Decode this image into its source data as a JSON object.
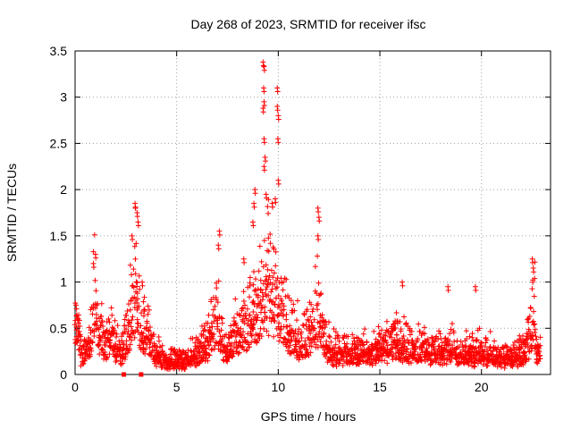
{
  "chart_data": {
    "type": "scatter",
    "title": "Day 268 of 2023, SRMTID for receiver ifsc",
    "xlabel": "GPS time / hours",
    "ylabel": "SRMTID / TECUs",
    "xlim": [
      0,
      23.4
    ],
    "ylim": [
      0,
      3.5
    ],
    "xticks": [
      0,
      5,
      10,
      15,
      20
    ],
    "xtick_labels": [
      "0",
      "5",
      "10",
      "15",
      "20"
    ],
    "yticks": [
      0,
      0.5,
      1,
      1.5,
      2,
      2.5,
      3,
      3.5
    ],
    "ytick_labels": [
      "0",
      "0.5",
      "1",
      "1.5",
      "2",
      "2.5",
      "3",
      "3.5"
    ],
    "grid": true,
    "marker": "+",
    "series": [
      {
        "name": "SRMTID",
        "color": "#ff0000",
        "profile": [
          [
            0.0,
            0.55
          ],
          [
            0.1,
            0.65
          ],
          [
            0.2,
            0.7
          ],
          [
            0.3,
            0.25
          ],
          [
            0.5,
            0.3
          ],
          [
            0.7,
            0.5
          ],
          [
            0.9,
            0.9
          ],
          [
            1.0,
            1.05
          ],
          [
            1.2,
            0.55
          ],
          [
            1.5,
            0.45
          ],
          [
            1.8,
            0.6
          ],
          [
            2.0,
            0.4
          ],
          [
            2.3,
            0.35
          ],
          [
            2.6,
            0.6
          ],
          [
            2.8,
            1.0
          ],
          [
            3.0,
            1.2
          ],
          [
            3.2,
            0.7
          ],
          [
            3.5,
            0.6
          ],
          [
            3.7,
            0.45
          ],
          [
            4.0,
            0.3
          ],
          [
            4.3,
            0.2
          ],
          [
            4.6,
            0.18
          ],
          [
            5.0,
            0.2
          ],
          [
            5.3,
            0.18
          ],
          [
            5.6,
            0.22
          ],
          [
            5.9,
            0.3
          ],
          [
            6.2,
            0.35
          ],
          [
            6.5,
            0.45
          ],
          [
            6.8,
            0.65
          ],
          [
            7.0,
            0.85
          ],
          [
            7.2,
            0.5
          ],
          [
            7.5,
            0.35
          ],
          [
            7.8,
            0.5
          ],
          [
            8.0,
            0.6
          ],
          [
            8.3,
            0.7
          ],
          [
            8.6,
            0.8
          ],
          [
            8.9,
            0.9
          ],
          [
            9.2,
            1.1
          ],
          [
            9.4,
            1.3
          ],
          [
            9.6,
            1.1
          ],
          [
            9.8,
            1.0
          ],
          [
            10.0,
            0.9
          ],
          [
            10.3,
            0.75
          ],
          [
            10.6,
            0.6
          ],
          [
            11.0,
            0.5
          ],
          [
            11.4,
            0.55
          ],
          [
            11.8,
            0.8
          ],
          [
            12.0,
            0.9
          ],
          [
            12.3,
            0.45
          ],
          [
            12.7,
            0.32
          ],
          [
            13.2,
            0.3
          ],
          [
            13.7,
            0.32
          ],
          [
            14.2,
            0.33
          ],
          [
            14.7,
            0.35
          ],
          [
            15.2,
            0.4
          ],
          [
            15.7,
            0.45
          ],
          [
            16.2,
            0.42
          ],
          [
            16.7,
            0.38
          ],
          [
            17.2,
            0.35
          ],
          [
            17.7,
            0.3
          ],
          [
            18.2,
            0.32
          ],
          [
            18.6,
            0.4
          ],
          [
            19.0,
            0.3
          ],
          [
            19.5,
            0.3
          ],
          [
            20.0,
            0.33
          ],
          [
            20.5,
            0.28
          ],
          [
            21.0,
            0.25
          ],
          [
            21.5,
            0.22
          ],
          [
            22.0,
            0.3
          ],
          [
            22.3,
            0.45
          ],
          [
            22.5,
            0.8
          ],
          [
            22.6,
            0.95
          ],
          [
            22.7,
            0.35
          ],
          [
            22.9,
            0.28
          ]
        ],
        "spikes": [
          [
            0.05,
            0.75
          ],
          [
            0.9,
            1.2
          ],
          [
            1.0,
            1.3
          ],
          [
            2.8,
            1.5
          ],
          [
            2.95,
            1.85
          ],
          [
            3.05,
            1.75
          ],
          [
            3.1,
            1.65
          ],
          [
            3.3,
            1.0
          ],
          [
            7.05,
            1.4
          ],
          [
            7.1,
            1.55
          ],
          [
            8.3,
            1.25
          ],
          [
            8.75,
            1.65
          ],
          [
            8.8,
            1.85
          ],
          [
            8.85,
            2.0
          ],
          [
            9.25,
            3.38
          ],
          [
            9.3,
            3.33
          ],
          [
            9.28,
            3.1
          ],
          [
            9.3,
            2.95
          ],
          [
            9.25,
            2.88
          ],
          [
            9.3,
            2.55
          ],
          [
            9.35,
            2.35
          ],
          [
            9.3,
            2.25
          ],
          [
            9.4,
            1.95
          ],
          [
            9.7,
            1.85
          ],
          [
            9.85,
            1.9
          ],
          [
            9.95,
            3.1
          ],
          [
            9.95,
            2.9
          ],
          [
            10.0,
            2.8
          ],
          [
            9.98,
            2.55
          ],
          [
            10.0,
            2.1
          ],
          [
            11.95,
            1.8
          ],
          [
            12.0,
            1.7
          ],
          [
            11.95,
            1.5
          ],
          [
            16.1,
            1.0
          ],
          [
            18.35,
            0.95
          ],
          [
            19.7,
            0.95
          ],
          [
            22.5,
            1.25
          ],
          [
            22.55,
            1.15
          ]
        ],
        "low_markers": [
          [
            2.4,
            0.0
          ],
          [
            3.25,
            0.0
          ]
        ]
      }
    ]
  }
}
